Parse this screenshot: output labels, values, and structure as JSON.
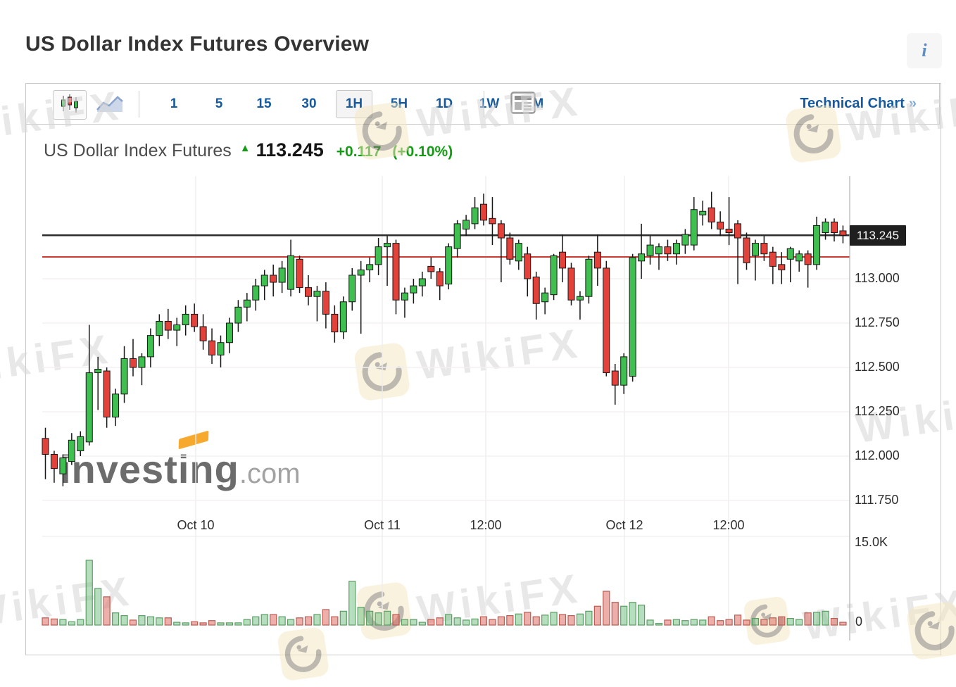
{
  "page": {
    "title": "US Dollar Index Futures Overview"
  },
  "info_button": {
    "label": "i"
  },
  "toolbar": {
    "chart_type": [
      {
        "name": "candlestick",
        "selected": true
      },
      {
        "name": "line",
        "selected": false
      }
    ],
    "timeframes": [
      {
        "label": "1",
        "selected": false
      },
      {
        "label": "5",
        "selected": false
      },
      {
        "label": "15",
        "selected": false
      },
      {
        "label": "30",
        "selected": false
      },
      {
        "label": "1H",
        "selected": true
      },
      {
        "label": "5H",
        "selected": false
      },
      {
        "label": "1D",
        "selected": false
      },
      {
        "label": "1W",
        "selected": false
      },
      {
        "label": "1M",
        "selected": false
      }
    ],
    "technical_chart_label": "Technical Chart",
    "technical_chart_arrow": "»"
  },
  "instrument": {
    "name": "US Dollar Index Futures",
    "direction": "up",
    "last": "113.245",
    "change": "+0.117",
    "change_pct": "(+0.10%)"
  },
  "watermark": {
    "text": "WikiFX"
  },
  "branding": {
    "word": "investing",
    "tld": ".com"
  },
  "chart_data": {
    "type": "candlestick",
    "title": "US Dollar Index Futures",
    "timeframe": "1H",
    "last_price": 113.245,
    "price_label": "113.245",
    "black_line_price": 113.245,
    "red_line_price": 113.123,
    "y_ticks": [
      "113.000",
      "112.750",
      "112.500",
      "112.250",
      "112.000",
      "111.750"
    ],
    "x_ticks": [
      "Oct 10",
      "Oct 11",
      "12:00",
      "Oct 12",
      "12:00"
    ],
    "volume_axis": {
      "top_label": "15.0K",
      "bottom_label": "0",
      "max_k": 15.0
    },
    "ohlc_legend": "values are [open, high, low, close]",
    "candles": [
      [
        112.1,
        112.16,
        111.87,
        112.01
      ],
      [
        112.01,
        112.03,
        111.85,
        111.93
      ],
      [
        111.9,
        112.01,
        111.83,
        111.99
      ],
      [
        111.97,
        112.13,
        111.95,
        112.09
      ],
      [
        112.03,
        112.14,
        112.0,
        112.11
      ],
      [
        112.08,
        112.74,
        112.06,
        112.47
      ],
      [
        112.47,
        112.56,
        112.26,
        112.49
      ],
      [
        112.48,
        112.5,
        112.16,
        112.22
      ],
      [
        112.22,
        112.38,
        112.17,
        112.35
      ],
      [
        112.35,
        112.62,
        112.3,
        112.55
      ],
      [
        112.55,
        112.66,
        112.45,
        112.5
      ],
      [
        112.5,
        112.58,
        112.4,
        112.56
      ],
      [
        112.56,
        112.72,
        112.5,
        112.68
      ],
      [
        112.68,
        112.8,
        112.62,
        112.76
      ],
      [
        112.76,
        112.83,
        112.66,
        112.71
      ],
      [
        112.71,
        112.78,
        112.62,
        112.74
      ],
      [
        112.74,
        112.85,
        112.68,
        112.8
      ],
      [
        112.8,
        112.86,
        112.7,
        112.73
      ],
      [
        112.73,
        112.8,
        112.6,
        112.65
      ],
      [
        112.65,
        112.72,
        112.52,
        112.57
      ],
      [
        112.57,
        112.68,
        112.5,
        112.64
      ],
      [
        112.64,
        112.78,
        112.58,
        112.75
      ],
      [
        112.75,
        112.88,
        112.7,
        112.84
      ],
      [
        112.84,
        112.92,
        112.76,
        112.88
      ],
      [
        112.88,
        113.0,
        112.82,
        112.96
      ],
      [
        112.96,
        113.05,
        112.88,
        113.02
      ],
      [
        113.02,
        113.08,
        112.9,
        112.98
      ],
      [
        112.98,
        113.1,
        112.92,
        113.06
      ],
      [
        112.94,
        113.22,
        112.9,
        113.13
      ],
      [
        113.11,
        113.13,
        112.92,
        112.95
      ],
      [
        112.95,
        113.02,
        112.85,
        112.9
      ],
      [
        112.9,
        112.96,
        112.76,
        112.93
      ],
      [
        112.93,
        112.98,
        112.72,
        112.8
      ],
      [
        112.8,
        112.85,
        112.64,
        112.7
      ],
      [
        112.7,
        112.9,
        112.66,
        112.87
      ],
      [
        112.87,
        113.06,
        112.82,
        113.02
      ],
      [
        113.02,
        113.1,
        112.69,
        113.05
      ],
      [
        113.05,
        113.12,
        112.98,
        113.08
      ],
      [
        113.08,
        113.23,
        113.02,
        113.18
      ],
      [
        113.18,
        113.24,
        112.96,
        113.2
      ],
      [
        113.2,
        113.22,
        112.8,
        112.88
      ],
      [
        112.88,
        112.95,
        112.78,
        112.92
      ],
      [
        112.92,
        113.0,
        112.86,
        112.96
      ],
      [
        112.96,
        113.04,
        112.9,
        113.0
      ],
      [
        113.07,
        113.12,
        113.0,
        113.04
      ],
      [
        113.04,
        113.06,
        112.88,
        112.96
      ],
      [
        112.97,
        113.2,
        112.94,
        113.18
      ],
      [
        113.17,
        113.33,
        113.12,
        113.31
      ],
      [
        113.28,
        113.36,
        113.24,
        113.33
      ],
      [
        113.31,
        113.46,
        113.28,
        113.4
      ],
      [
        113.42,
        113.48,
        113.3,
        113.33
      ],
      [
        113.34,
        113.46,
        113.19,
        113.31
      ],
      [
        113.31,
        113.33,
        112.98,
        113.23
      ],
      [
        113.23,
        113.26,
        113.08,
        113.11
      ],
      [
        113.1,
        113.22,
        113.05,
        113.2
      ],
      [
        113.14,
        113.18,
        112.9,
        113.0
      ],
      [
        113.01,
        113.04,
        112.77,
        112.86
      ],
      [
        112.87,
        112.95,
        112.8,
        112.92
      ],
      [
        112.91,
        113.14,
        112.88,
        113.13
      ],
      [
        113.15,
        113.25,
        112.98,
        113.06
      ],
      [
        113.06,
        113.09,
        112.85,
        112.88
      ],
      [
        112.88,
        112.93,
        112.77,
        112.9
      ],
      [
        112.9,
        113.13,
        112.86,
        113.11
      ],
      [
        113.15,
        113.25,
        112.96,
        113.06
      ],
      [
        113.06,
        113.1,
        112.45,
        112.47
      ],
      [
        112.48,
        112.52,
        112.29,
        112.4
      ],
      [
        112.4,
        112.58,
        112.35,
        112.56
      ],
      [
        112.45,
        113.14,
        112.42,
        113.12
      ],
      [
        113.1,
        113.31,
        113.0,
        113.14
      ],
      [
        113.13,
        113.24,
        113.08,
        113.19
      ],
      [
        113.14,
        113.2,
        113.05,
        113.18
      ],
      [
        113.18,
        113.22,
        113.1,
        113.14
      ],
      [
        113.14,
        113.22,
        113.08,
        113.2
      ],
      [
        113.19,
        113.28,
        113.14,
        113.25
      ],
      [
        113.19,
        113.46,
        113.16,
        113.39
      ],
      [
        113.36,
        113.44,
        113.3,
        113.38
      ],
      [
        113.4,
        113.49,
        113.28,
        113.32
      ],
      [
        113.32,
        113.38,
        113.24,
        113.28
      ],
      [
        113.28,
        113.46,
        113.19,
        113.26
      ],
      [
        113.31,
        113.33,
        112.97,
        113.23
      ],
      [
        113.23,
        113.26,
        113.05,
        113.09
      ],
      [
        113.13,
        113.22,
        112.99,
        113.2
      ],
      [
        113.2,
        113.24,
        113.1,
        113.14
      ],
      [
        113.15,
        113.18,
        112.97,
        113.07
      ],
      [
        113.08,
        113.15,
        112.97,
        113.05
      ],
      [
        113.11,
        113.18,
        112.98,
        113.17
      ],
      [
        113.1,
        113.16,
        113.04,
        113.14
      ],
      [
        113.14,
        113.16,
        112.95,
        113.08
      ],
      [
        113.08,
        113.35,
        113.05,
        113.3
      ],
      [
        113.26,
        113.34,
        113.22,
        113.32
      ],
      [
        113.32,
        113.34,
        113.21,
        113.26
      ],
      [
        113.27,
        113.3,
        113.2,
        113.245
      ]
    ],
    "volumes_k": [
      1.3,
      1.1,
      1.0,
      0.6,
      1.0,
      11.7,
      6.6,
      5.1,
      2.2,
      1.7,
      0.9,
      1.7,
      1.5,
      1.3,
      1.3,
      0.5,
      0.4,
      0.6,
      0.4,
      0.8,
      0.4,
      0.4,
      0.4,
      1.0,
      1.5,
      1.9,
      1.9,
      1.5,
      1.0,
      1.3,
      1.5,
      1.9,
      2.8,
      1.5,
      2.5,
      7.9,
      3.2,
      2.5,
      2.2,
      2.5,
      1.9,
      1.0,
      1.0,
      0.5,
      1.0,
      1.3,
      1.9,
      1.3,
      0.9,
      1.1,
      1.5,
      1.0,
      1.5,
      1.7,
      2.0,
      2.3,
      1.5,
      1.8,
      2.3,
      1.9,
      1.7,
      2.0,
      2.5,
      3.4,
      6.1,
      4.1,
      3.4,
      4.1,
      3.6,
      0.9,
      0.3,
      0.9,
      1.0,
      0.8,
      1.0,
      0.9,
      1.5,
      0.8,
      1.0,
      1.8,
      0.9,
      1.2,
      1.0,
      1.3,
      1.5,
      1.2,
      1.0,
      2.2,
      2.3,
      2.5,
      1.2,
      0.5
    ],
    "colors": {
      "up": "#3fbf4f",
      "down": "#e3423b",
      "outline": "#161616",
      "black_line": "#2b2b2b",
      "red_line": "#cc3b33",
      "vol_up_fill": "rgba(110,190,125,0.5)",
      "vol_up_stroke": "#5a9e63",
      "vol_down_fill": "rgba(220,110,100,0.55)",
      "vol_down_stroke": "#bb5b52",
      "grid": "#f3f0f0",
      "axis": "#b0b0b0"
    }
  }
}
